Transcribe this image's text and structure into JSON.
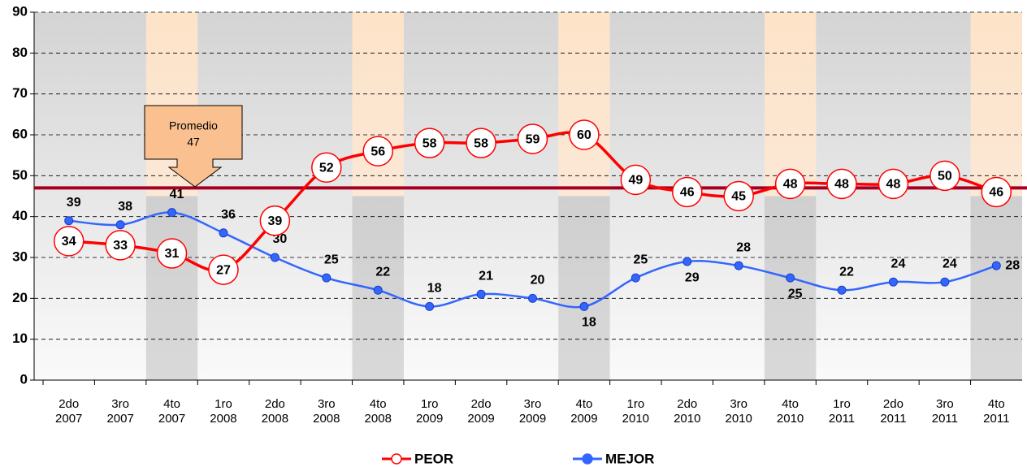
{
  "chart_data": {
    "type": "line",
    "categories": [
      "2do\n2007",
      "3ro\n2007",
      "4to\n2007",
      "1ro\n2008",
      "2do\n2008",
      "3ro\n2008",
      "4to\n2008",
      "1ro\n2009",
      "2do\n2009",
      "3ro\n2009",
      "4to\n2009",
      "1ro\n2010",
      "2do\n2010",
      "3ro\n2010",
      "4to\n2010",
      "1ro\n2011",
      "2do\n2011",
      "3ro\n2011",
      "4to\n2011"
    ],
    "series": [
      {
        "name": "PEOR",
        "color": "#ff0000",
        "values": [
          34,
          33,
          31,
          27,
          39,
          52,
          56,
          58,
          58,
          59,
          60,
          49,
          46,
          45,
          48,
          48,
          48,
          50,
          46
        ]
      },
      {
        "name": "MEJOR",
        "color": "#3366ff",
        "values": [
          39,
          38,
          41,
          36,
          30,
          25,
          22,
          18,
          21,
          20,
          18,
          25,
          29,
          28,
          25,
          22,
          24,
          24,
          28
        ]
      }
    ],
    "average": {
      "label": "Promedio",
      "value": 47,
      "color": "#a50021"
    },
    "ylim": [
      0,
      90
    ],
    "yticks": [
      0,
      10,
      20,
      30,
      40,
      50,
      60,
      70,
      80,
      90
    ],
    "grid": true,
    "legend": "bottom"
  }
}
